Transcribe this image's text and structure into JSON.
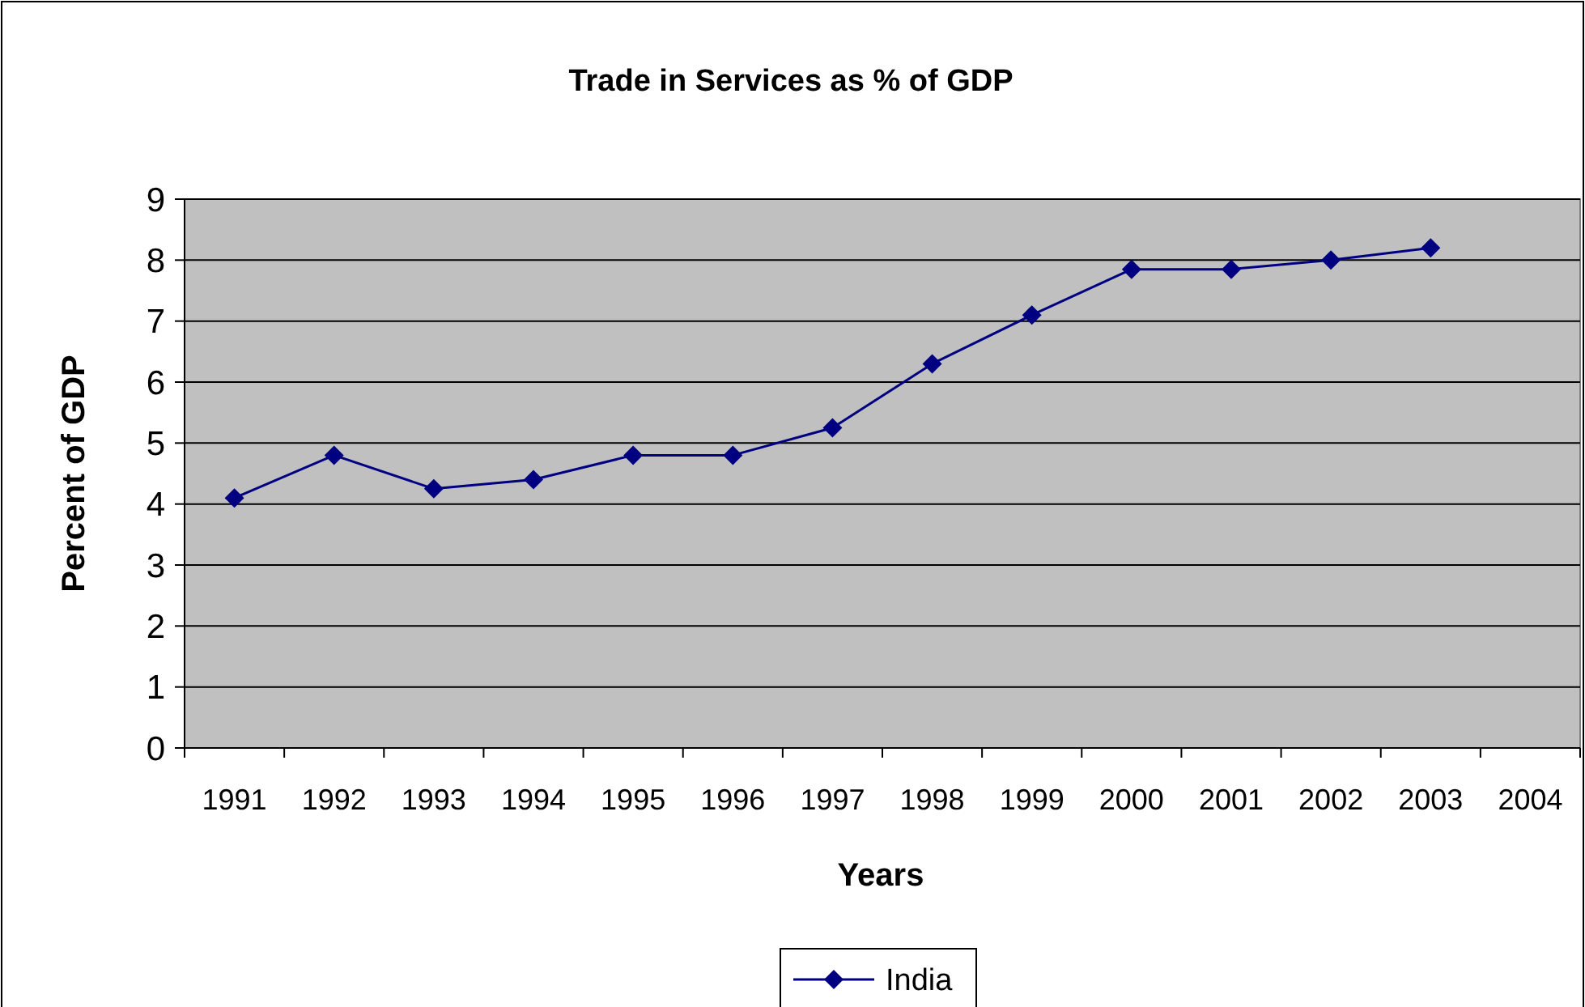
{
  "chart_data": {
    "type": "line",
    "title": "Trade in Services as % of GDP",
    "xlabel": "Years",
    "ylabel": "Percent of GDP",
    "categories": [
      "1991",
      "1992",
      "1993",
      "1994",
      "1995",
      "1996",
      "1997",
      "1998",
      "1999",
      "2000",
      "2001",
      "2002",
      "2003",
      "2004"
    ],
    "series": [
      {
        "name": "India",
        "color": "#000080",
        "values": [
          4.1,
          4.8,
          4.25,
          4.4,
          4.8,
          4.8,
          5.25,
          6.3,
          7.1,
          7.85,
          7.85,
          8.0,
          8.2,
          null
        ]
      }
    ],
    "ylim": [
      0,
      9
    ],
    "yticks": [
      0,
      1,
      2,
      3,
      4,
      5,
      6,
      7,
      8,
      9
    ],
    "grid": "y",
    "legend": "bottom",
    "marker": "diamond",
    "line_style": "solid"
  }
}
